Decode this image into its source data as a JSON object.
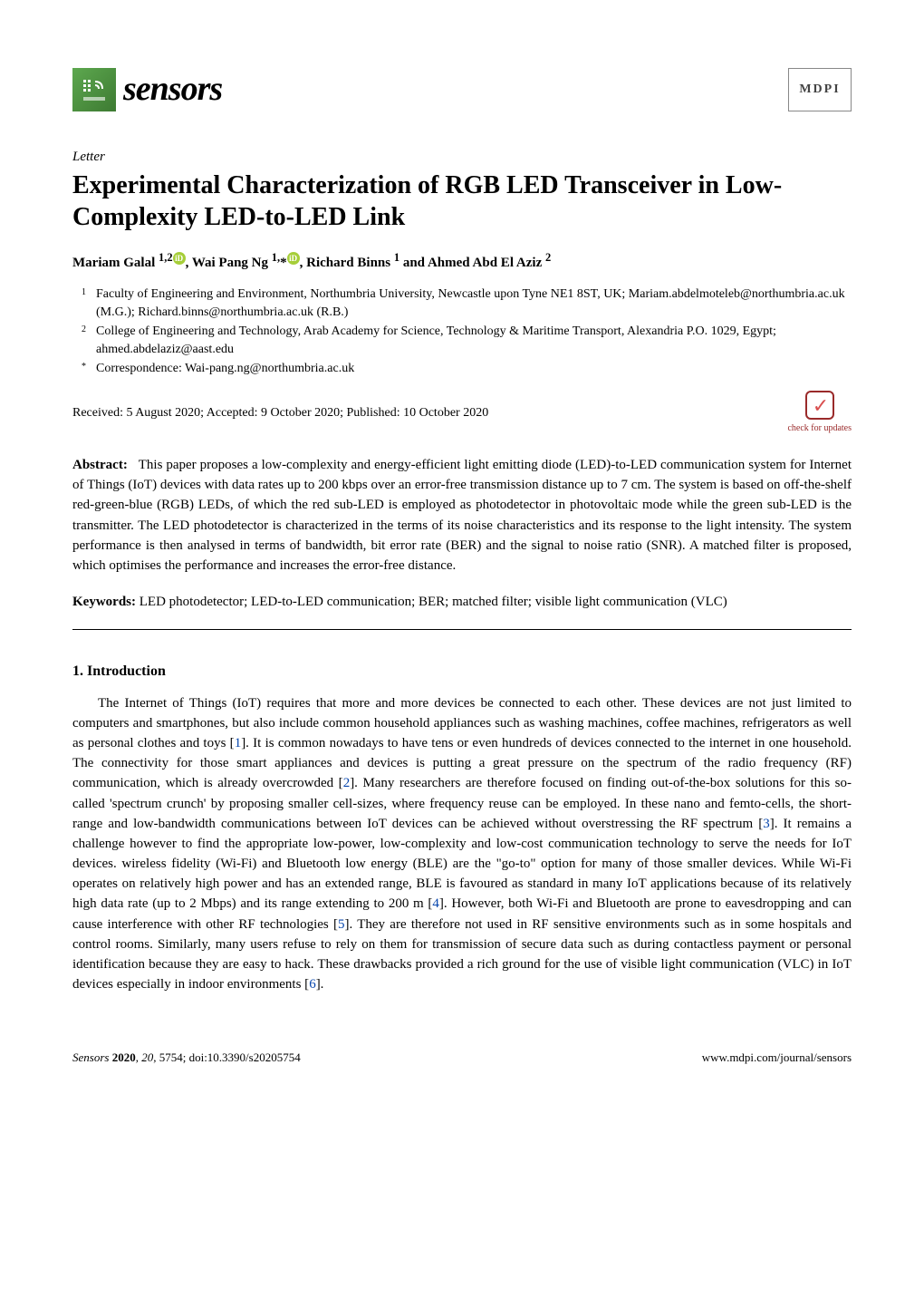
{
  "header": {
    "journal_name": "sensors",
    "publisher_mark": "MDPI"
  },
  "article": {
    "type": "Letter",
    "title": "Experimental Characterization of RGB LED Transceiver in Low-Complexity LED-to-LED Link",
    "authors_html": "Mariam Galal <sup>1,2</sup><span class=\"orcid\">iD</span>, Wai Pang Ng <sup>1,</sup>*<span class=\"orcid\">iD</span>, Richard Binns <sup>1</sup> and Ahmed Abd El Aziz <sup>2</sup>",
    "affiliations": [
      {
        "num": "1",
        "text": "Faculty of Engineering and Environment, Northumbria University, Newcastle upon Tyne NE1 8ST, UK; Mariam.abdelmoteleb@northumbria.ac.uk (M.G.); Richard.binns@northumbria.ac.uk (R.B.)"
      },
      {
        "num": "2",
        "text": "College of Engineering and Technology, Arab Academy for Science, Technology & Maritime Transport, Alexandria P.O. 1029, Egypt; ahmed.abdelaziz@aast.edu"
      },
      {
        "num": "*",
        "text": "Correspondence: Wai-pang.ng@northumbria.ac.uk"
      }
    ],
    "history": "Received: 5 August 2020; Accepted: 9 October 2020; Published: 10 October 2020",
    "check_updates": "check for updates"
  },
  "abstract": {
    "label": "Abstract:",
    "text": "This paper proposes a low-complexity and energy-efficient light emitting diode (LED)-to-LED communication system for Internet of Things (IoT) devices with data rates up to 200 kbps over an error-free transmission distance up to 7 cm. The system is based on off-the-shelf red-green-blue (RGB) LEDs, of which the red sub-LED is employed as photodetector in photovoltaic mode while the green sub-LED is the transmitter. The LED photodetector is characterized in the terms of its noise characteristics and its response to the light intensity. The system performance is then analysed in terms of bandwidth, bit error rate (BER) and the signal to noise ratio (SNR). A matched filter is proposed, which optimises the performance and increases the error-free distance."
  },
  "keywords": {
    "label": "Keywords:",
    "text": "LED photodetector; LED-to-LED communication; BER; matched filter; visible light communication (VLC)"
  },
  "section1": {
    "heading": "1. Introduction",
    "paragraph": "The Internet of Things (IoT) requires that more and more devices be connected to each other. These devices are not just limited to computers and smartphones, but also include common household appliances such as washing machines, coffee machines, refrigerators as well as personal clothes and toys [<span class=\"ref\">1</span>]. It is common nowadays to have tens or even hundreds of devices connected to the internet in one household. The connectivity for those smart appliances and devices is putting a great pressure on the spectrum of the radio frequency (RF) communication, which is already overcrowded [<span class=\"ref\">2</span>]. Many researchers are therefore focused on finding out-of-the-box solutions for this so-called 'spectrum crunch' by proposing smaller cell-sizes, where frequency reuse can be employed. In these nano and femto-cells, the short-range and low-bandwidth communications between IoT devices can be achieved without overstressing the RF spectrum [<span class=\"ref\">3</span>]. It remains a challenge however to find the appropriate low-power, low-complexity and low-cost communication technology to serve the needs for IoT devices. wireless fidelity (Wi-Fi) and Bluetooth low energy (BLE) are the \"go-to\" option for many of those smaller devices. While Wi-Fi operates on relatively high power and has an extended range, BLE is favoured as standard in many IoT applications because of its relatively high data rate (up to 2 Mbps) and its range extending to 200 m [<span class=\"ref\">4</span>]. However, both Wi-Fi and Bluetooth are prone to eavesdropping and can cause interference with other RF technologies [<span class=\"ref\">5</span>]. They are therefore not used in RF sensitive environments such as in some hospitals and control rooms. Similarly, many users refuse to rely on them for transmission of secure data such as during contactless payment or personal identification because they are easy to hack. These drawbacks provided a rich ground for the use of visible light communication (VLC) in IoT devices especially in indoor environments [<span class=\"ref\">6</span>]."
  },
  "footer": {
    "left_journal": "Sensors",
    "left_year": "2020",
    "left_vol": "20",
    "left_artnum": "5754",
    "left_doi": "doi:10.3390/s20205754",
    "right_url": "www.mdpi.com/journal/sensors"
  },
  "colors": {
    "ref_link": "#0645ad",
    "orcid_bg": "#a6ce39",
    "check_border": "#9a2a2a",
    "check_tick": "#d94f4f",
    "logo_green_a": "#5da84f",
    "logo_green_b": "#3d7a32"
  }
}
